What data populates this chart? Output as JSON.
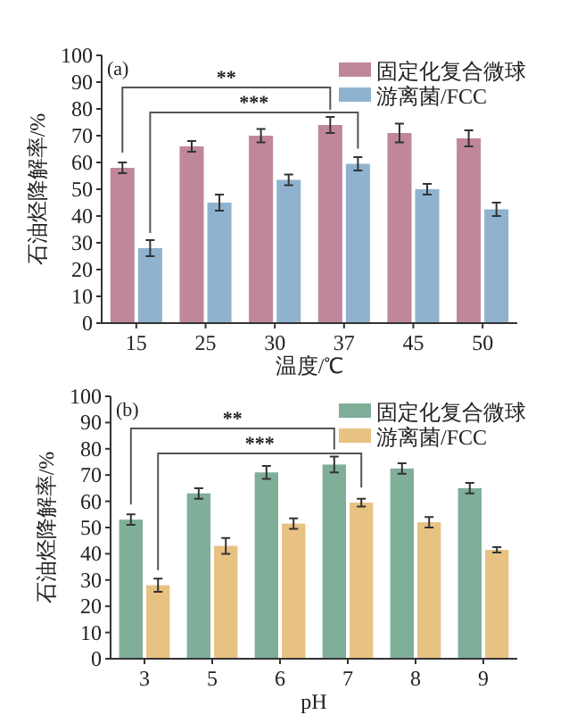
{
  "chart_data": [
    {
      "type": "bar",
      "title": "(a)",
      "xlabel": "温度/℃",
      "ylabel": "石油烃降解率/%",
      "categories": [
        "15",
        "25",
        "30",
        "37",
        "45",
        "50"
      ],
      "series": [
        {
          "name": "固定化复合微球",
          "color": "#c0879c",
          "values": [
            58,
            66,
            70,
            74,
            71,
            69
          ],
          "errors": [
            2,
            2,
            2.5,
            3,
            3.5,
            3
          ]
        },
        {
          "name": "游离菌/FCC",
          "color": "#8fb3cf",
          "values": [
            28,
            45,
            53.5,
            59.5,
            50,
            42.5
          ],
          "errors": [
            3,
            3,
            2,
            2.5,
            2,
            2.5
          ]
        }
      ],
      "ylim": [
        0,
        100
      ],
      "yticks": [
        0,
        10,
        20,
        30,
        40,
        50,
        60,
        70,
        80,
        90,
        100
      ],
      "legend": "top right",
      "annotations": [
        "**",
        "***"
      ]
    },
    {
      "type": "bar",
      "title": "(b)",
      "xlabel": "pH",
      "ylabel": "石油烃降解率/%",
      "categories": [
        "3",
        "5",
        "6",
        "7",
        "8",
        "9"
      ],
      "series": [
        {
          "name": "固定化复合微球",
          "color": "#7fae99",
          "values": [
            53,
            63,
            71,
            74,
            72.5,
            65
          ],
          "errors": [
            2,
            2,
            2.5,
            3,
            2,
            2
          ]
        },
        {
          "name": "游离菌/FCC",
          "color": "#e8c283",
          "values": [
            28,
            43,
            51.5,
            59.5,
            52,
            41.5
          ],
          "errors": [
            2.5,
            3,
            2,
            1.5,
            2,
            1
          ]
        }
      ],
      "ylim": [
        0,
        100
      ],
      "yticks": [
        0,
        10,
        20,
        30,
        40,
        50,
        60,
        70,
        80,
        90,
        100
      ],
      "legend": "top right",
      "annotations": [
        "**",
        "***"
      ]
    }
  ]
}
